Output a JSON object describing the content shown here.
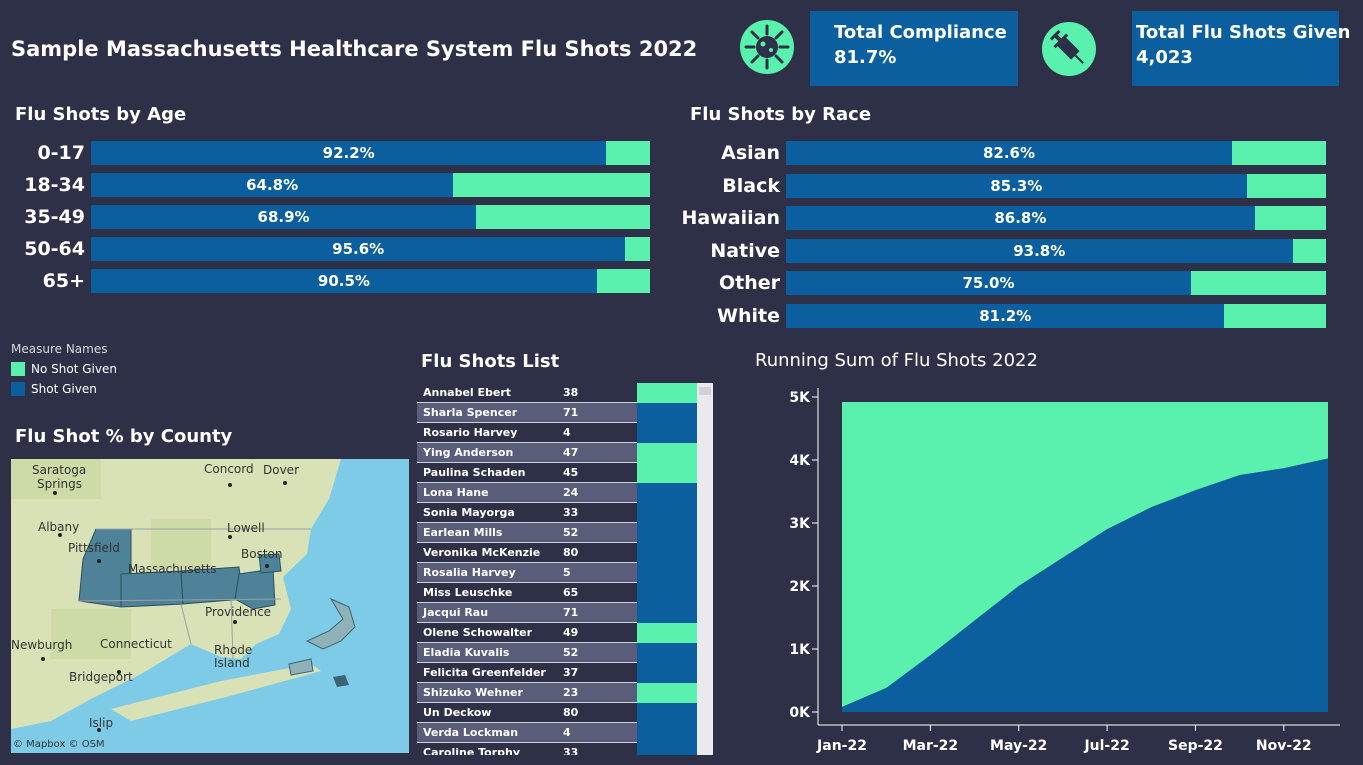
{
  "title": "Sample Massachusetts Healthcare System Flu Shots 2022",
  "kpis": {
    "compliance": {
      "label": "Total Compliance",
      "value": "81.7%",
      "icon": "virus-icon"
    },
    "flu_shots": {
      "label": "Total Flu Shots Given",
      "value": "4,023",
      "icon": "syringe-icon"
    }
  },
  "colors": {
    "shot_given": "#0b5f9e",
    "no_shot_given": "#5af0ae",
    "background": "#2e3047"
  },
  "age": {
    "title": "Flu Shots by Age",
    "rows": [
      {
        "label": "0-17",
        "pct": 92.2,
        "text": "92.2%"
      },
      {
        "label": "18-34",
        "pct": 64.8,
        "text": "64.8%"
      },
      {
        "label": "35-49",
        "pct": 68.9,
        "text": "68.9%"
      },
      {
        "label": "50-64",
        "pct": 95.6,
        "text": "95.6%"
      },
      {
        "label": "65+",
        "pct": 90.5,
        "text": "90.5%"
      }
    ]
  },
  "race": {
    "title": "Flu Shots by Race",
    "rows": [
      {
        "label": "Asian",
        "pct": 82.6,
        "text": "82.6%"
      },
      {
        "label": "Black",
        "pct": 85.3,
        "text": "85.3%"
      },
      {
        "label": "Hawaiian",
        "pct": 86.8,
        "text": "86.8%"
      },
      {
        "label": "Native",
        "pct": 93.8,
        "text": "93.8%"
      },
      {
        "label": "Other",
        "pct": 75.0,
        "text": "75.0%"
      },
      {
        "label": "White",
        "pct": 81.2,
        "text": "81.2%"
      }
    ]
  },
  "legend": {
    "title": "Measure Names",
    "items": [
      {
        "label": "No Shot Given",
        "color": "#5af0ae"
      },
      {
        "label": "Shot Given",
        "color": "#0b5f9e"
      }
    ]
  },
  "map": {
    "title": "Flu Shot % by County",
    "labels": {
      "saratoga": "Saratoga",
      "springs": "Springs",
      "concord": "Concord",
      "dover": "Dover",
      "albany": "Albany",
      "lowell": "Lowell",
      "pittsfield": "Pittsfield",
      "boston": "Boston",
      "massachusetts": "Massachusetts",
      "providence": "Providence",
      "newburgh": "Newburgh",
      "connecticut": "Connecticut",
      "rhode": "Rhode",
      "island": "Island",
      "bridgeport": "Bridgeport",
      "islip": "Islip"
    },
    "attribution": "© Mapbox  © OSM"
  },
  "list": {
    "title": "Flu Shots List",
    "rows": [
      {
        "name": "Annabel Ebert",
        "value": "38",
        "status": "no"
      },
      {
        "name": "Sharla Spencer",
        "value": "71",
        "status": "yes"
      },
      {
        "name": "Rosario Harvey",
        "value": "4",
        "status": "yes"
      },
      {
        "name": "Ying Anderson",
        "value": "47",
        "status": "no"
      },
      {
        "name": "Paulina Schaden",
        "value": "45",
        "status": "no"
      },
      {
        "name": "Lona Hane",
        "value": "24",
        "status": "yes"
      },
      {
        "name": "Sonia Mayorga",
        "value": "33",
        "status": "yes"
      },
      {
        "name": "Earlean Mills",
        "value": "52",
        "status": "yes"
      },
      {
        "name": "Veronika McKenzie",
        "value": "80",
        "status": "yes"
      },
      {
        "name": "Rosalia Harvey",
        "value": "5",
        "status": "yes"
      },
      {
        "name": "Miss Leuschke",
        "value": "65",
        "status": "yes"
      },
      {
        "name": "Jacqui Rau",
        "value": "71",
        "status": "yes"
      },
      {
        "name": "Olene Schowalter",
        "value": "49",
        "status": "no"
      },
      {
        "name": "Eladia Kuvalis",
        "value": "52",
        "status": "yes"
      },
      {
        "name": "Felicita Greenfelder",
        "value": "37",
        "status": "yes"
      },
      {
        "name": "Shizuko Wehner",
        "value": "23",
        "status": "no"
      },
      {
        "name": "Un Deckow",
        "value": "80",
        "status": "yes"
      },
      {
        "name": "Verda Lockman",
        "value": "4",
        "status": "yes"
      },
      {
        "name": "Caroline Torphy",
        "value": "33",
        "status": "yes"
      }
    ]
  },
  "chart_data": {
    "type": "area",
    "title": "Running Sum of Flu Shots 2022",
    "x": [
      "Jan-22",
      "Feb-22",
      "Mar-22",
      "Apr-22",
      "May-22",
      "Jun-22",
      "Jul-22",
      "Aug-22",
      "Sep-22",
      "Oct-22",
      "Nov-22",
      "Dec-22"
    ],
    "x_tick_labels": [
      "Jan-22",
      "Mar-22",
      "May-22",
      "Jul-22",
      "Sep-22",
      "Nov-22"
    ],
    "y_tick_labels": [
      "0K",
      "1K",
      "2K",
      "3K",
      "4K",
      "5K"
    ],
    "ylim": [
      0,
      5000
    ],
    "grid": false,
    "series": [
      {
        "name": "Shot Given",
        "values": [
          80,
          380,
          900,
          1450,
          2000,
          2450,
          2900,
          3250,
          3520,
          3760,
          3870,
          4023
        ]
      },
      {
        "name": "No Shot Given",
        "values": [
          4841,
          4541,
          4021,
          3471,
          2921,
          2471,
          2021,
          1671,
          1401,
          1161,
          1051,
          898
        ]
      }
    ]
  }
}
